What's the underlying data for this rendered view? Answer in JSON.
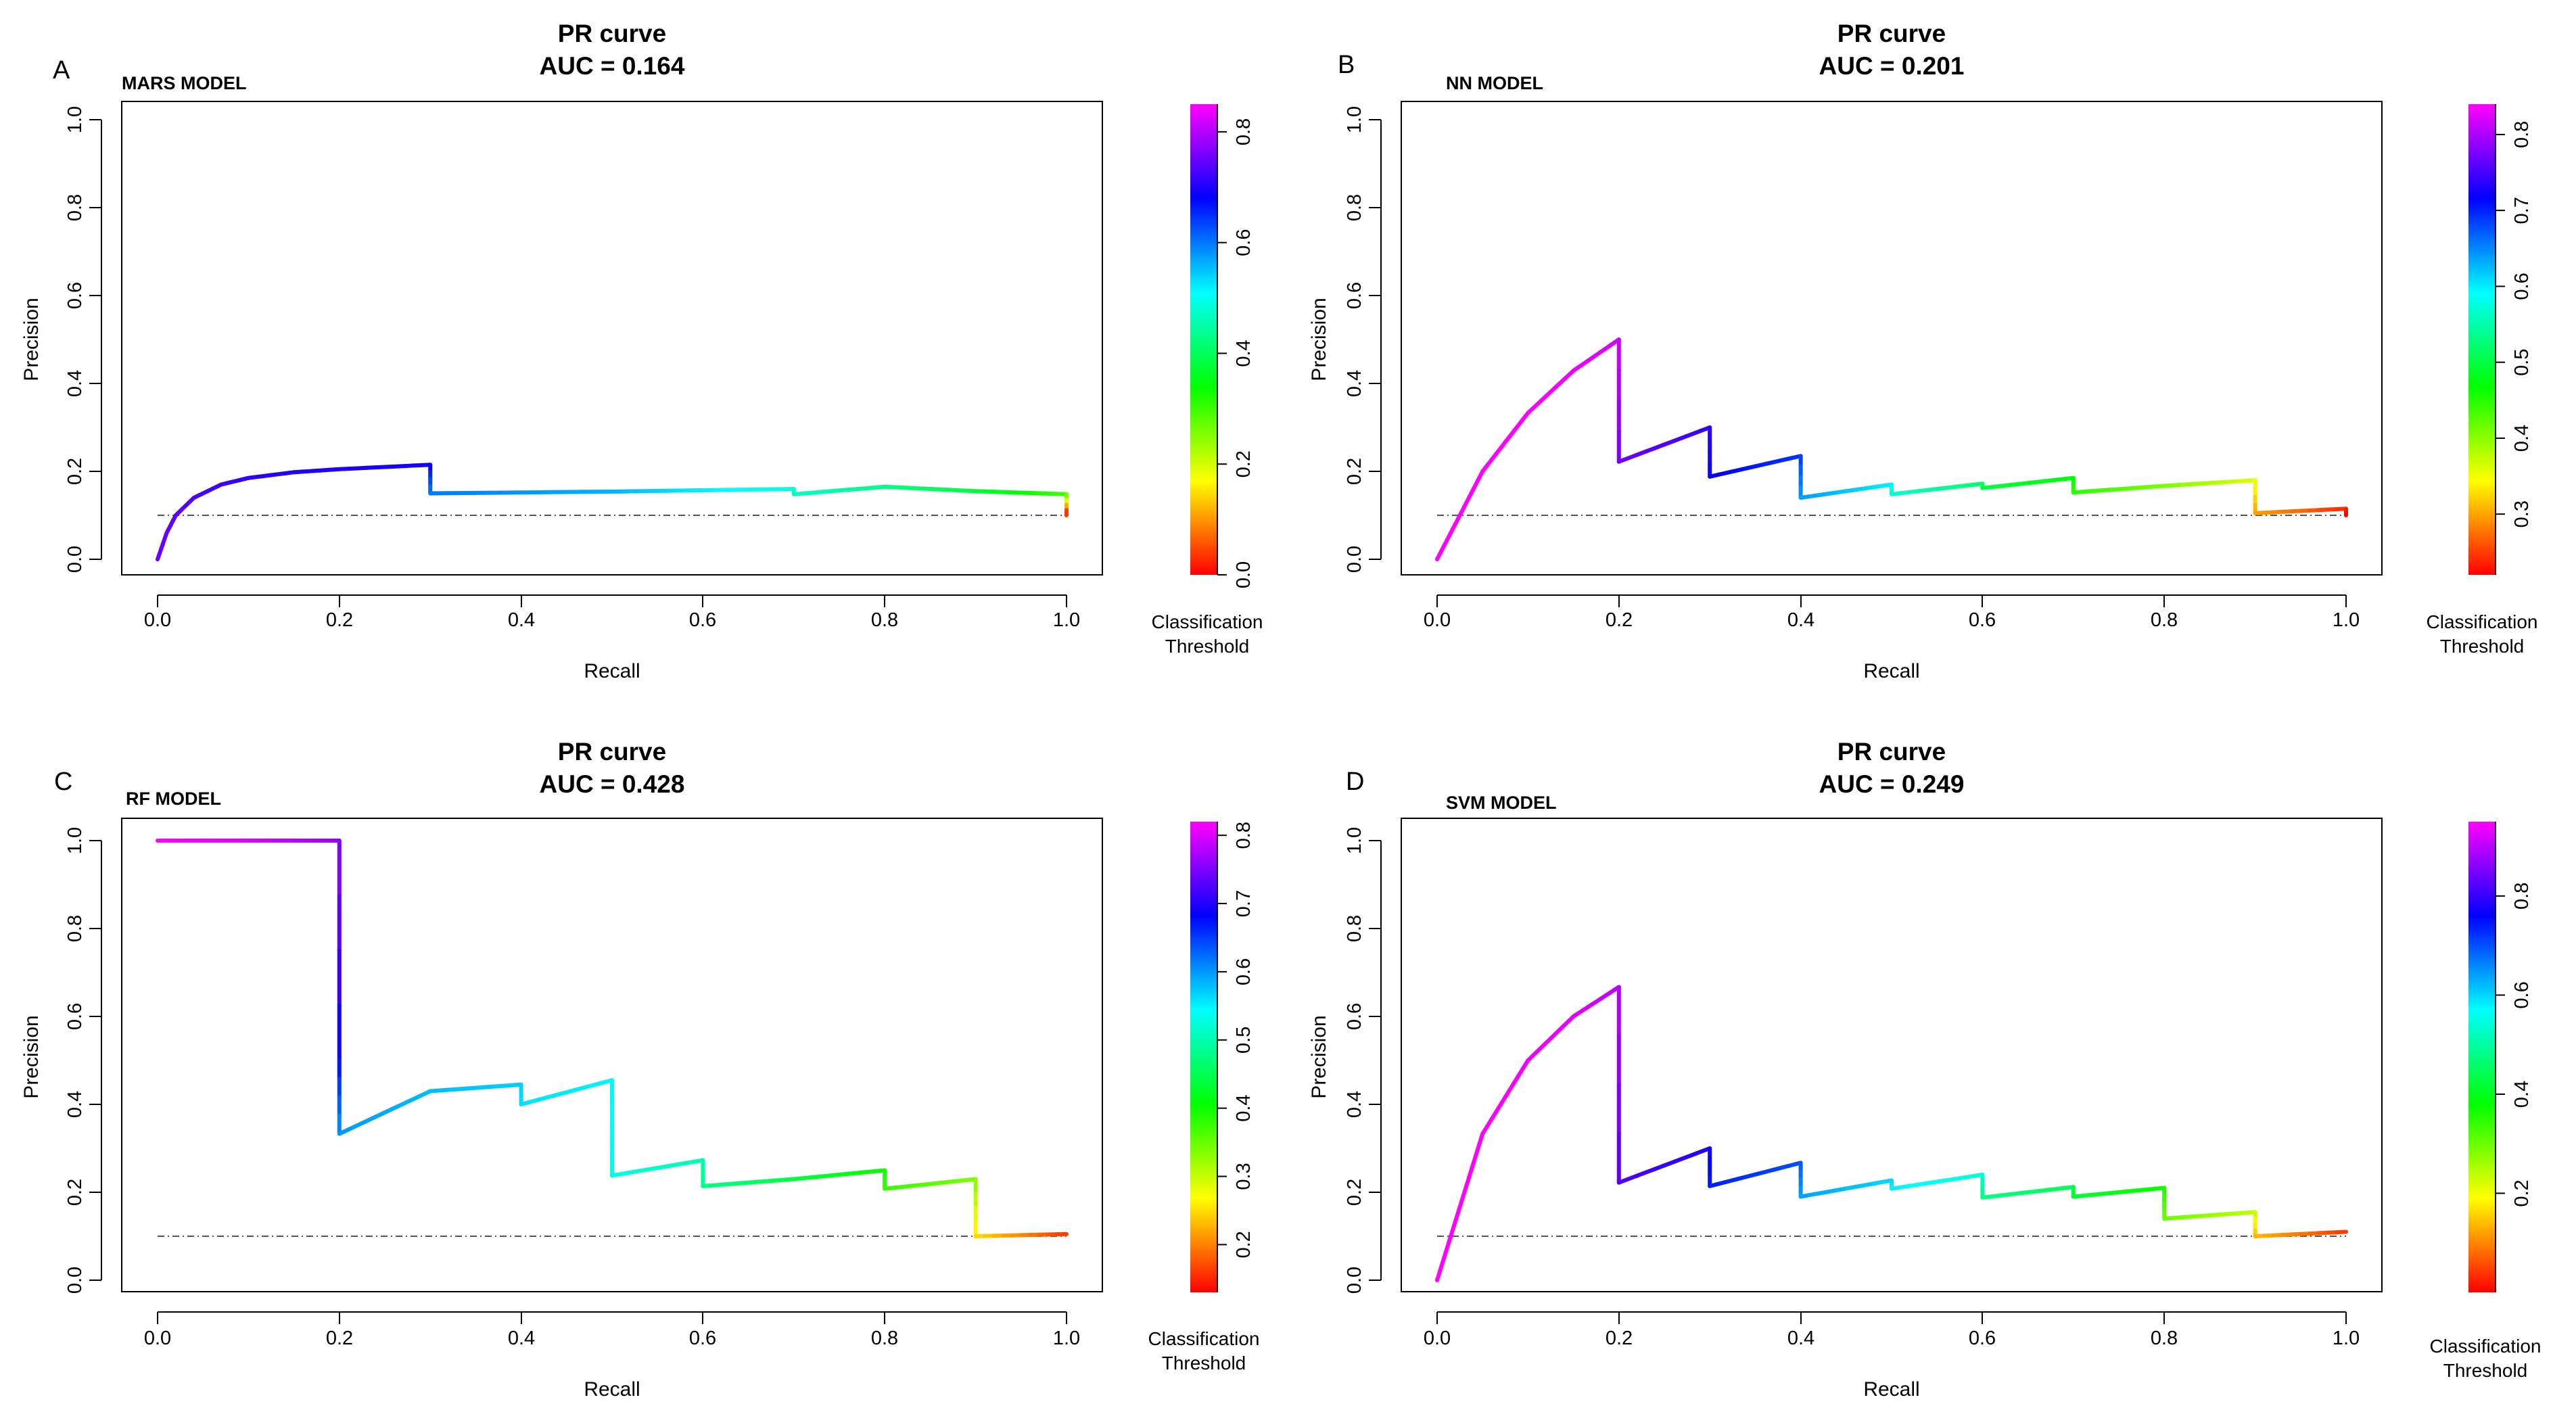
{
  "colors": {
    "baseline": "#555555",
    "axis": "#000000",
    "colormap": [
      "#ff0000",
      "#ffff00",
      "#00ff00",
      "#00ffff",
      "#0000ff",
      "#ff00ff"
    ]
  },
  "chart_data": [
    {
      "type": "line",
      "panel": "A",
      "model": "MARS MODEL",
      "title": "PR curve",
      "subtitle": "AUC = 0.164",
      "xlabel": "Recall",
      "ylabel": "Precision",
      "xlim": [
        0,
        1
      ],
      "ylim": [
        0,
        1
      ],
      "xticks": [
        "0.0",
        "0.2",
        "0.4",
        "0.6",
        "0.8",
        "1.0"
      ],
      "yticks": [
        "0.0",
        "0.2",
        "0.4",
        "0.6",
        "0.8",
        "1.0"
      ],
      "baseline": 0.1,
      "colorbar": {
        "min": 0.0,
        "max": 0.85,
        "ticks": [
          0.0,
          0.2,
          0.4,
          0.6,
          0.8
        ],
        "labels": [
          "0.0",
          "0.2",
          "0.4",
          "0.6",
          "0.8"
        ],
        "title_line1": "Classification",
        "title_line2": "Threshold"
      },
      "points": [
        {
          "r": 0.0,
          "p": 0.0,
          "t": 0.75
        },
        {
          "r": 0.01,
          "p": 0.06,
          "t": 0.75
        },
        {
          "r": 0.02,
          "p": 0.1,
          "t": 0.74
        },
        {
          "r": 0.04,
          "p": 0.14,
          "t": 0.73
        },
        {
          "r": 0.07,
          "p": 0.17,
          "t": 0.72
        },
        {
          "r": 0.1,
          "p": 0.185,
          "t": 0.71
        },
        {
          "r": 0.15,
          "p": 0.198,
          "t": 0.7
        },
        {
          "r": 0.2,
          "p": 0.205,
          "t": 0.7
        },
        {
          "r": 0.3,
          "p": 0.215,
          "t": 0.69
        },
        {
          "r": 0.3,
          "p": 0.15,
          "t": 0.6
        },
        {
          "r": 0.4,
          "p": 0.152,
          "t": 0.58
        },
        {
          "r": 0.5,
          "p": 0.154,
          "t": 0.56
        },
        {
          "r": 0.6,
          "p": 0.157,
          "t": 0.52
        },
        {
          "r": 0.7,
          "p": 0.16,
          "t": 0.49
        },
        {
          "r": 0.7,
          "p": 0.148,
          "t": 0.47
        },
        {
          "r": 0.8,
          "p": 0.165,
          "t": 0.43
        },
        {
          "r": 0.9,
          "p": 0.155,
          "t": 0.38
        },
        {
          "r": 1.0,
          "p": 0.148,
          "t": 0.3
        },
        {
          "r": 1.0,
          "p": 0.1,
          "t": 0.0
        }
      ]
    },
    {
      "type": "line",
      "panel": "B",
      "model": "NN MODEL",
      "title": "PR curve",
      "subtitle": "AUC = 0.201",
      "xlabel": "Recall",
      "ylabel": "Precision",
      "xlim": [
        0,
        1
      ],
      "ylim": [
        0,
        1
      ],
      "xticks": [
        "0.0",
        "0.2",
        "0.4",
        "0.6",
        "0.8",
        "1.0"
      ],
      "yticks": [
        "0.0",
        "0.2",
        "0.4",
        "0.6",
        "0.8",
        "1.0"
      ],
      "baseline": 0.1,
      "colorbar": {
        "min": 0.22,
        "max": 0.84,
        "ticks": [
          0.3,
          0.4,
          0.5,
          0.6,
          0.7,
          0.8
        ],
        "labels": [
          "0.3",
          "0.4",
          "0.5",
          "0.6",
          "0.7",
          "0.8"
        ],
        "title_line1": "Classification",
        "title_line2": "Threshold"
      },
      "points": [
        {
          "r": 0.0,
          "p": 0.0,
          "t": 0.84
        },
        {
          "r": 0.05,
          "p": 0.2,
          "t": 0.84
        },
        {
          "r": 0.1,
          "p": 0.333,
          "t": 0.84
        },
        {
          "r": 0.15,
          "p": 0.429,
          "t": 0.83
        },
        {
          "r": 0.2,
          "p": 0.5,
          "t": 0.82
        },
        {
          "r": 0.2,
          "p": 0.222,
          "t": 0.77
        },
        {
          "r": 0.3,
          "p": 0.3,
          "t": 0.74
        },
        {
          "r": 0.3,
          "p": 0.188,
          "t": 0.72
        },
        {
          "r": 0.4,
          "p": 0.235,
          "t": 0.69
        },
        {
          "r": 0.4,
          "p": 0.14,
          "t": 0.64
        },
        {
          "r": 0.5,
          "p": 0.17,
          "t": 0.6
        },
        {
          "r": 0.5,
          "p": 0.148,
          "t": 0.57
        },
        {
          "r": 0.6,
          "p": 0.172,
          "t": 0.52
        },
        {
          "r": 0.6,
          "p": 0.162,
          "t": 0.5
        },
        {
          "r": 0.7,
          "p": 0.185,
          "t": 0.47
        },
        {
          "r": 0.7,
          "p": 0.152,
          "t": 0.45
        },
        {
          "r": 0.8,
          "p": 0.167,
          "t": 0.41
        },
        {
          "r": 0.9,
          "p": 0.18,
          "t": 0.36
        },
        {
          "r": 0.9,
          "p": 0.105,
          "t": 0.3
        },
        {
          "r": 1.0,
          "p": 0.115,
          "t": 0.24
        },
        {
          "r": 1.0,
          "p": 0.1,
          "t": 0.22
        }
      ]
    },
    {
      "type": "line",
      "panel": "C",
      "model": "RF MODEL",
      "title": "PR curve",
      "subtitle": "AUC = 0.428",
      "xlabel": "Recall",
      "ylabel": "Precision",
      "xlim": [
        0,
        1
      ],
      "ylim": [
        0,
        1
      ],
      "xticks": [
        "0.0",
        "0.2",
        "0.4",
        "0.6",
        "0.8",
        "1.0"
      ],
      "yticks": [
        "0.0",
        "0.2",
        "0.4",
        "0.6",
        "0.8",
        "1.0"
      ],
      "baseline": 0.1,
      "colorbar": {
        "min": 0.13,
        "max": 0.82,
        "ticks": [
          0.2,
          0.3,
          0.4,
          0.5,
          0.6,
          0.7,
          0.8
        ],
        "labels": [
          "0.2",
          "0.3",
          "0.4",
          "0.5",
          "0.6",
          "0.7",
          "0.8"
        ],
        "title_line1": "Classification",
        "title_line2": "Threshold"
      },
      "points": [
        {
          "r": 0.0,
          "p": 1.0,
          "t": 0.82
        },
        {
          "r": 0.1,
          "p": 1.0,
          "t": 0.8
        },
        {
          "r": 0.2,
          "p": 1.0,
          "t": 0.76
        },
        {
          "r": 0.2,
          "p": 0.5,
          "t": 0.68
        },
        {
          "r": 0.2,
          "p": 0.333,
          "t": 0.6
        },
        {
          "r": 0.3,
          "p": 0.43,
          "t": 0.58
        },
        {
          "r": 0.4,
          "p": 0.445,
          "t": 0.57
        },
        {
          "r": 0.4,
          "p": 0.4,
          "t": 0.56
        },
        {
          "r": 0.5,
          "p": 0.455,
          "t": 0.55
        },
        {
          "r": 0.5,
          "p": 0.238,
          "t": 0.53
        },
        {
          "r": 0.6,
          "p": 0.273,
          "t": 0.5
        },
        {
          "r": 0.6,
          "p": 0.214,
          "t": 0.48
        },
        {
          "r": 0.7,
          "p": 0.23,
          "t": 0.44
        },
        {
          "r": 0.8,
          "p": 0.25,
          "t": 0.4
        },
        {
          "r": 0.8,
          "p": 0.208,
          "t": 0.38
        },
        {
          "r": 0.9,
          "p": 0.23,
          "t": 0.34
        },
        {
          "r": 0.9,
          "p": 0.1,
          "t": 0.25
        },
        {
          "r": 1.0,
          "p": 0.105,
          "t": 0.16
        }
      ]
    },
    {
      "type": "line",
      "panel": "D",
      "model": "SVM MODEL",
      "title": "PR curve",
      "subtitle": "AUC = 0.249",
      "xlabel": "Recall",
      "ylabel": "Precision",
      "xlim": [
        0,
        1
      ],
      "ylim": [
        0,
        1
      ],
      "xticks": [
        "0.0",
        "0.2",
        "0.4",
        "0.6",
        "0.8",
        "1.0"
      ],
      "yticks": [
        "0.0",
        "0.2",
        "0.4",
        "0.6",
        "0.8",
        "1.0"
      ],
      "baseline": 0.1,
      "colorbar": {
        "min": 0.0,
        "max": 0.95,
        "ticks": [
          0.2,
          0.4,
          0.6,
          0.8
        ],
        "labels": [
          "0.2",
          "0.4",
          "0.6",
          "0.8"
        ],
        "title_line1": "Classification",
        "title_line2": "Threshold"
      },
      "points": [
        {
          "r": 0.0,
          "p": 0.0,
          "t": 0.95
        },
        {
          "r": 0.05,
          "p": 0.333,
          "t": 0.95
        },
        {
          "r": 0.1,
          "p": 0.5,
          "t": 0.94
        },
        {
          "r": 0.15,
          "p": 0.6,
          "t": 0.93
        },
        {
          "r": 0.2,
          "p": 0.667,
          "t": 0.9
        },
        {
          "r": 0.2,
          "p": 0.222,
          "t": 0.82
        },
        {
          "r": 0.3,
          "p": 0.3,
          "t": 0.78
        },
        {
          "r": 0.3,
          "p": 0.214,
          "t": 0.74
        },
        {
          "r": 0.4,
          "p": 0.267,
          "t": 0.7
        },
        {
          "r": 0.4,
          "p": 0.19,
          "t": 0.64
        },
        {
          "r": 0.5,
          "p": 0.227,
          "t": 0.6
        },
        {
          "r": 0.5,
          "p": 0.208,
          "t": 0.58
        },
        {
          "r": 0.6,
          "p": 0.24,
          "t": 0.54
        },
        {
          "r": 0.6,
          "p": 0.188,
          "t": 0.48
        },
        {
          "r": 0.7,
          "p": 0.212,
          "t": 0.44
        },
        {
          "r": 0.7,
          "p": 0.19,
          "t": 0.42
        },
        {
          "r": 0.8,
          "p": 0.21,
          "t": 0.37
        },
        {
          "r": 0.8,
          "p": 0.14,
          "t": 0.3
        },
        {
          "r": 0.9,
          "p": 0.155,
          "t": 0.24
        },
        {
          "r": 0.9,
          "p": 0.1,
          "t": 0.14
        },
        {
          "r": 1.0,
          "p": 0.11,
          "t": 0.04
        }
      ]
    }
  ]
}
